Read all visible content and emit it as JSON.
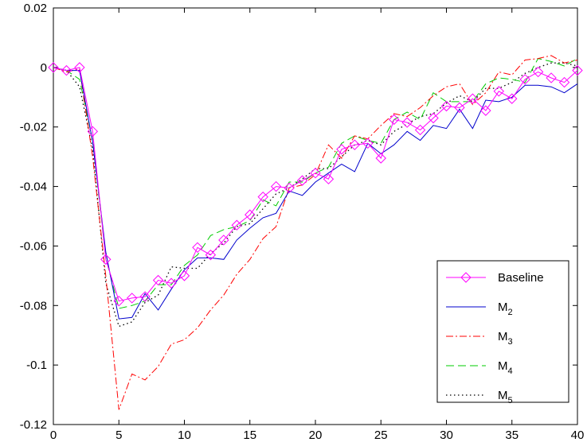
{
  "chart_data": {
    "type": "line",
    "xlim": [
      0,
      40
    ],
    "ylim": [
      -0.12,
      0.02
    ],
    "xticks": [
      "0",
      "5",
      "10",
      "15",
      "20",
      "25",
      "30",
      "35",
      "40"
    ],
    "yticks": [
      "0.02",
      "0",
      "-0.02",
      "-0.04",
      "-0.06",
      "-0.08",
      "-0.1",
      "-0.12"
    ],
    "grid": false,
    "legend_position": "bottom-right",
    "x": [
      0,
      1,
      2,
      3,
      4,
      5,
      6,
      7,
      8,
      9,
      10,
      11,
      12,
      13,
      14,
      15,
      16,
      17,
      18,
      19,
      20,
      21,
      22,
      23,
      24,
      25,
      26,
      27,
      28,
      29,
      30,
      31,
      32,
      33,
      34,
      35,
      36,
      37,
      38,
      39,
      40
    ],
    "series": [
      {
        "name": "Baseline",
        "color": "#ff00ff",
        "style": "solid-diamond",
        "values": [
          0,
          -0.001,
          0,
          -0.0215,
          -0.0645,
          -0.0785,
          -0.0775,
          -0.077,
          -0.0715,
          -0.0725,
          -0.07,
          -0.0605,
          -0.063,
          -0.058,
          -0.053,
          -0.0495,
          -0.0435,
          -0.04,
          -0.0405,
          -0.038,
          -0.0355,
          -0.0375,
          -0.0275,
          -0.026,
          -0.0255,
          -0.0305,
          -0.0175,
          -0.0185,
          -0.021,
          -0.017,
          -0.013,
          -0.0135,
          -0.0105,
          -0.0145,
          -0.008,
          -0.0105,
          -0.004,
          -0.0015,
          -0.0035,
          -0.005,
          -0.001
        ]
      },
      {
        "name": "M2",
        "sub": "2",
        "color": "#0000cc",
        "style": "solid",
        "values": [
          0,
          -0.001,
          -0.001,
          -0.025,
          -0.062,
          -0.0845,
          -0.084,
          -0.076,
          -0.0815,
          -0.0745,
          -0.068,
          -0.064,
          -0.064,
          -0.0645,
          -0.058,
          -0.054,
          -0.0505,
          -0.049,
          -0.0415,
          -0.043,
          -0.0385,
          -0.0355,
          -0.0325,
          -0.035,
          -0.0255,
          -0.029,
          -0.026,
          -0.0215,
          -0.0245,
          -0.0195,
          -0.0205,
          -0.014,
          -0.0205,
          -0.011,
          -0.0115,
          -0.01,
          -0.006,
          -0.006,
          -0.0065,
          -0.0085,
          -0.0055
        ]
      },
      {
        "name": "M3",
        "sub": "3",
        "color": "#ff0000",
        "style": "dash-dot",
        "values": [
          0,
          -0.0015,
          -0.0005,
          -0.03,
          -0.07,
          -0.115,
          -0.103,
          -0.105,
          -0.1005,
          -0.093,
          -0.0915,
          -0.0875,
          -0.0815,
          -0.0765,
          -0.0695,
          -0.0645,
          -0.0575,
          -0.0535,
          -0.0405,
          -0.0395,
          -0.036,
          -0.026,
          -0.0305,
          -0.023,
          -0.024,
          -0.0195,
          -0.0155,
          -0.0165,
          -0.0135,
          -0.0095,
          -0.0065,
          -0.0055,
          -0.0125,
          -0.0085,
          -0.0015,
          -0.0025,
          0.0025,
          0.003,
          0.004,
          0.0015,
          0.0025
        ]
      },
      {
        "name": "M4",
        "sub": "4",
        "color": "#00cc00",
        "style": "dashed",
        "values": [
          0,
          -0.001,
          -0.004,
          -0.0245,
          -0.064,
          -0.081,
          -0.08,
          -0.0785,
          -0.073,
          -0.073,
          -0.0665,
          -0.063,
          -0.0565,
          -0.0545,
          -0.0535,
          -0.0515,
          -0.0445,
          -0.0465,
          -0.0385,
          -0.0385,
          -0.0355,
          -0.0335,
          -0.0255,
          -0.023,
          -0.0245,
          -0.0255,
          -0.0175,
          -0.015,
          -0.0175,
          -0.0085,
          -0.0115,
          -0.0115,
          -0.0115,
          -0.0055,
          -0.0035,
          -0.004,
          -0.005,
          0.003,
          0.002,
          0.0005,
          0.003
        ]
      },
      {
        "name": "M5",
        "sub": "5",
        "color": "#000000",
        "style": "dotted",
        "values": [
          0,
          -0.001,
          -0.0065,
          -0.0275,
          -0.0725,
          -0.087,
          -0.0855,
          -0.079,
          -0.0765,
          -0.067,
          -0.0675,
          -0.0675,
          -0.0625,
          -0.059,
          -0.0535,
          -0.0525,
          -0.0475,
          -0.0425,
          -0.0405,
          -0.0375,
          -0.034,
          -0.034,
          -0.03,
          -0.026,
          -0.0245,
          -0.026,
          -0.0215,
          -0.019,
          -0.0165,
          -0.0155,
          -0.012,
          -0.0095,
          -0.0115,
          -0.007,
          -0.007,
          -0.005,
          -0.002,
          0,
          0.0015,
          0.0015,
          0.0005
        ]
      }
    ]
  }
}
